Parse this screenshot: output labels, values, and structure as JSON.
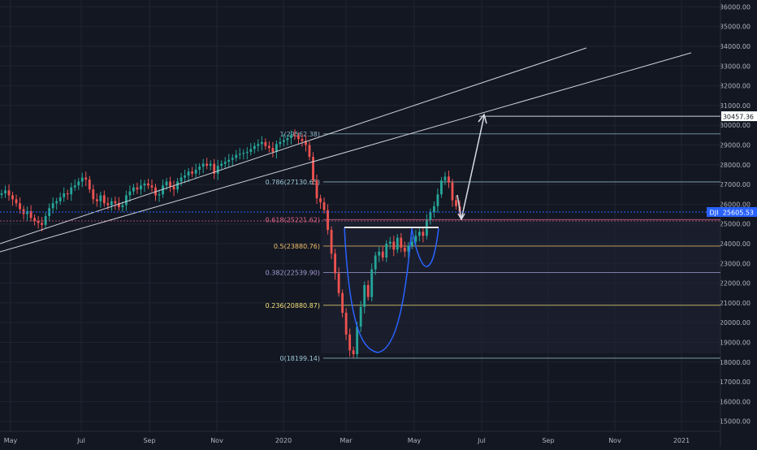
{
  "colors": {
    "background": "#131722",
    "grid": "#1e2433",
    "axis_text": "#b2b5be",
    "candle_up": "#26a69a",
    "candle_down": "#ef5350",
    "trendline": "#d1d4dc",
    "pattern_curve": "#2962ff",
    "ticker_badge": "#2962ff",
    "target_badge": "#ffffff",
    "fib_1": "#8fb8c9",
    "fib_0786": "#9fc9d8",
    "fib_0618": "#e0658a",
    "fib_05": "#f5c26b",
    "fib_0382": "#a59cd4",
    "fib_0236": "#f5e27a",
    "fib_0": "#9fc9d8"
  },
  "chart_data": {
    "type": "candlestick",
    "title": "",
    "xlabel": "",
    "ylabel": "",
    "x_tick_labels": [
      "May",
      "Jul",
      "Sep",
      "Nov",
      "2020",
      "Mar",
      "May",
      "Jul",
      "Sep",
      "Nov",
      "2021"
    ],
    "y_tick_labels": [
      "15000.00",
      "16000.00",
      "17000.00",
      "18000.00",
      "19000.00",
      "20000.00",
      "21000.00",
      "22000.00",
      "23000.00",
      "24000.00",
      "25000.00",
      "26000.00",
      "27000.00",
      "28000.00",
      "29000.00",
      "30000.00",
      "31000.00",
      "32000.00",
      "33000.00",
      "34000.00",
      "35000.00",
      "36000.00"
    ],
    "ylim": [
      14300,
      36400
    ],
    "grid": true,
    "ticker": "DJI",
    "last_price": "25605.53",
    "target_price": "30457.36",
    "fib_levels": [
      {
        "ratio": 1,
        "price": 29562.38,
        "label": "1(29562.38)",
        "color_key": "fib_1"
      },
      {
        "ratio": 0.786,
        "price": 27130.65,
        "label": "0.786(27130.65)",
        "color_key": "fib_0786"
      },
      {
        "ratio": 0.618,
        "price": 25221.62,
        "label": "0.618(25221.62)",
        "color_key": "fib_0618"
      },
      {
        "ratio": 0.5,
        "price": 23880.76,
        "label": "0.5(23880.76)",
        "color_key": "fib_05"
      },
      {
        "ratio": 0.382,
        "price": 22539.9,
        "label": "0.382(22539.90)",
        "color_key": "fib_0382"
      },
      {
        "ratio": 0.236,
        "price": 20880.87,
        "label": "0.236(20880.87)",
        "color_key": "fib_0236"
      },
      {
        "ratio": 0,
        "price": 18199.14,
        "label": "0(18199.14)",
        "color_key": "fib_0"
      }
    ],
    "series_close": [
      26550,
      26700,
      26450,
      26250,
      26050,
      25750,
      25500,
      25650,
      25300,
      25150,
      25050,
      24950,
      25400,
      25800,
      26050,
      26150,
      26350,
      26550,
      26500,
      26850,
      26950,
      27150,
      27350,
      27250,
      26750,
      26250,
      26150,
      26450,
      26050,
      25950,
      26150,
      26050,
      25850,
      25950,
      26450,
      26650,
      26850,
      26750,
      26950,
      27050,
      26950,
      26850,
      26450,
      26500,
      26950,
      27150,
      26900,
      26750,
      27150,
      27350,
      27450,
      27650,
      27550,
      27750,
      27900,
      28050,
      27950,
      28050,
      27550,
      27950,
      28050,
      28150,
      28250,
      28350,
      28500,
      28550,
      28600,
      28650,
      28800,
      28950,
      29050,
      29150,
      28950,
      28850,
      28650,
      29050,
      29150,
      29250,
      29350,
      29500,
      29450,
      29300,
      29200,
      29000,
      28400,
      27200,
      26300,
      26100,
      25700,
      24700,
      23500,
      22500,
      21500,
      20500,
      19400,
      18600,
      18400,
      19800,
      20800,
      21900,
      21300,
      22700,
      23400,
      23600,
      23300,
      24000,
      24100,
      23700,
      24300,
      23800,
      23600,
      23900,
      24100,
      24400,
      24600,
      24400,
      25200,
      25600,
      25900,
      26500,
      27200,
      27400,
      27100,
      26200,
      25900,
      25605
    ]
  }
}
